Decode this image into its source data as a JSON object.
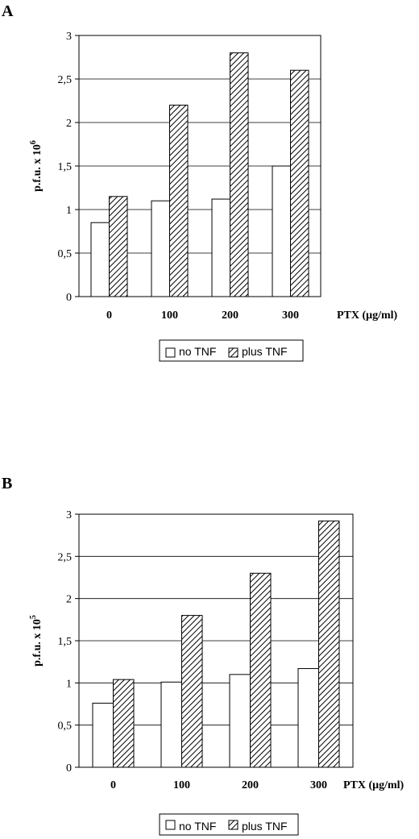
{
  "chart_data": [
    {
      "panel": "A",
      "type": "bar",
      "categories": [
        "0",
        "100",
        "200",
        "300"
      ],
      "series": [
        {
          "name": "no TNF",
          "values": [
            0.85,
            1.1,
            1.12,
            1.5
          ]
        },
        {
          "name": "plus TNF",
          "values": [
            1.15,
            2.2,
            2.8,
            2.6
          ]
        }
      ],
      "ylabel": "p.f.u. x 10",
      "ylabel_exp": "6",
      "xlabel": "PTX (μg/ml)",
      "ylim": [
        0,
        3
      ],
      "yticks": [
        "0",
        "0,5",
        "1",
        "1,5",
        "2",
        "2,5",
        "3"
      ],
      "grid": true,
      "legend": "bottom"
    },
    {
      "panel": "B",
      "type": "bar",
      "categories": [
        "0",
        "100",
        "200",
        "300"
      ],
      "series": [
        {
          "name": "no TNF",
          "values": [
            0.76,
            1.01,
            1.1,
            1.17
          ]
        },
        {
          "name": "plus TNF",
          "values": [
            1.04,
            1.8,
            2.3,
            2.92
          ]
        }
      ],
      "ylabel": "p.f.u. x 10",
      "ylabel_exp": "5",
      "xlabel": "PTX (μg/ml)",
      "ylim": [
        0,
        3
      ],
      "yticks": [
        "0",
        "0,5",
        "1",
        "1,5",
        "2",
        "2,5",
        "3"
      ],
      "grid": true,
      "legend": "bottom"
    }
  ]
}
